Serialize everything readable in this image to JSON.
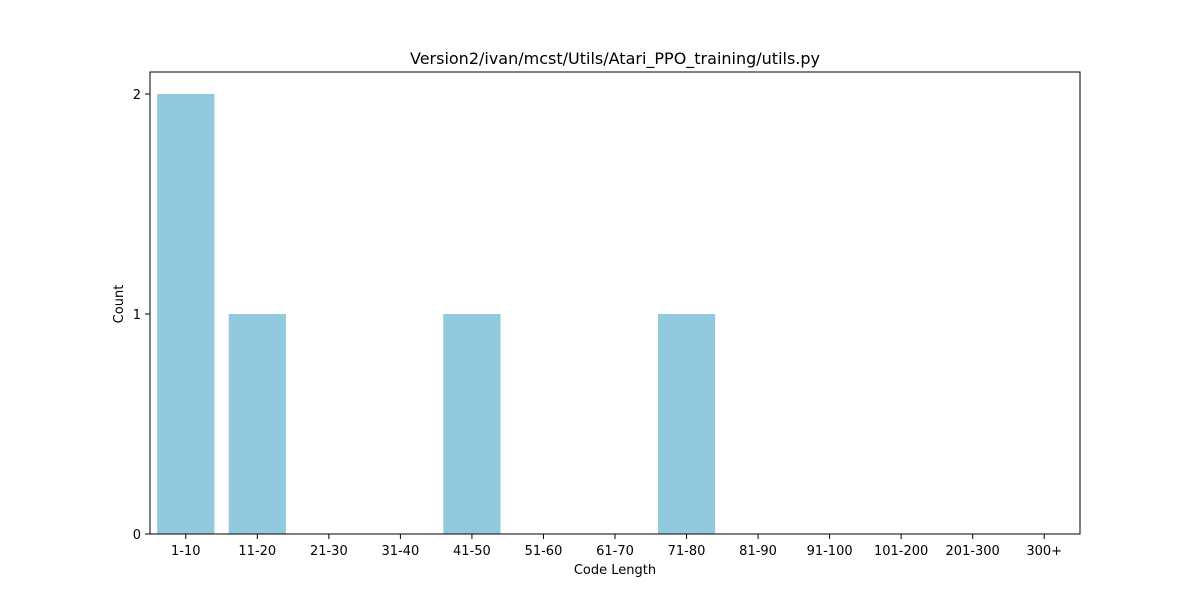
{
  "chart_data": {
    "type": "bar",
    "title": "Version2/ivan/mcst/Utils/Atari_PPO_training/utils.py",
    "xlabel": "Code Length",
    "ylabel": "Count",
    "categories": [
      "1-10",
      "11-20",
      "21-30",
      "31-40",
      "41-50",
      "51-60",
      "61-70",
      "71-80",
      "81-90",
      "91-100",
      "101-200",
      "201-300",
      "300+"
    ],
    "values": [
      2,
      1,
      0,
      0,
      1,
      0,
      0,
      1,
      0,
      0,
      0,
      0,
      0
    ],
    "ylim": [
      0,
      2.1
    ],
    "yticks": [
      "0",
      "1",
      "2"
    ],
    "grid": false,
    "bar_color": "#92c9df"
  }
}
